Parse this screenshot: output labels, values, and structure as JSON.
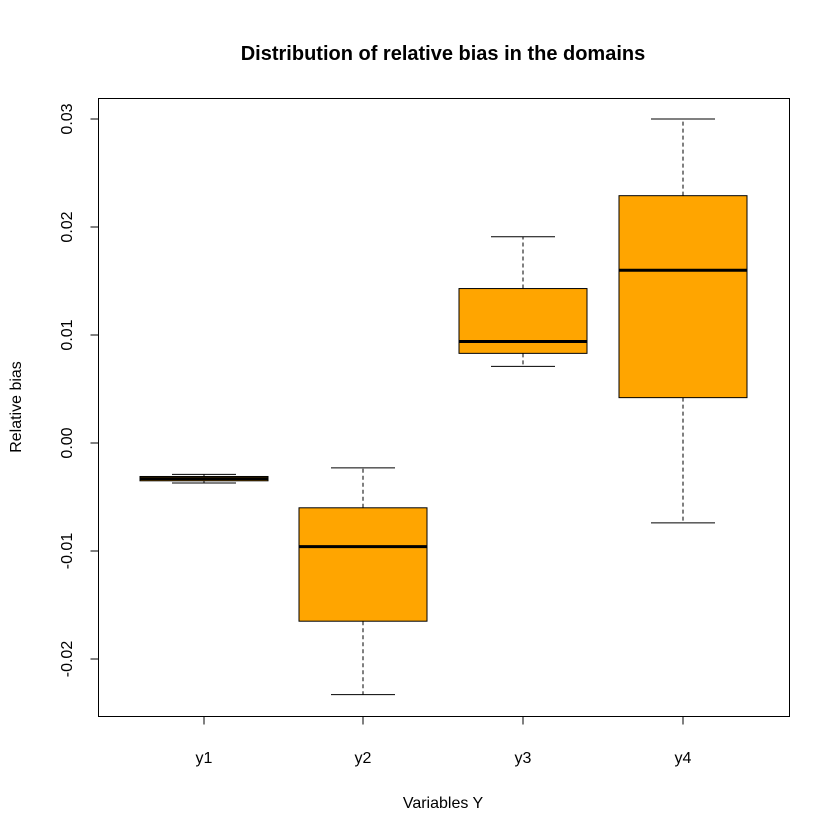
{
  "chart_data": {
    "type": "boxplot",
    "title": "Distribution of relative bias in the domains",
    "xlabel": "Variables Y",
    "ylabel": "Relative bias",
    "categories": [
      "y1",
      "y2",
      "y3",
      "y4"
    ],
    "boxes": [
      {
        "name": "y1",
        "min": -0.0037,
        "q1": -0.0035,
        "median": -0.0033,
        "q3": -0.0031,
        "max": -0.0029
      },
      {
        "name": "y2",
        "min": -0.0233,
        "q1": -0.0165,
        "median": -0.0096,
        "q3": -0.006,
        "max": -0.0023
      },
      {
        "name": "y3",
        "min": 0.0071,
        "q1": 0.0083,
        "median": 0.0094,
        "q3": 0.0143,
        "max": 0.0191
      },
      {
        "name": "y4",
        "min": -0.0074,
        "q1": 0.0042,
        "median": 0.016,
        "q3": 0.0229,
        "max": 0.03
      }
    ],
    "yticks": [
      -0.02,
      -0.01,
      0.0,
      0.01,
      0.02,
      0.03
    ],
    "ytick_labels": [
      "-0.02",
      "-0.01",
      "0.00",
      "0.01",
      "0.02",
      "0.03"
    ],
    "ylim": [
      -0.0255,
      0.032
    ],
    "box_color": "#FFA500",
    "grid": false,
    "legend": "none"
  }
}
